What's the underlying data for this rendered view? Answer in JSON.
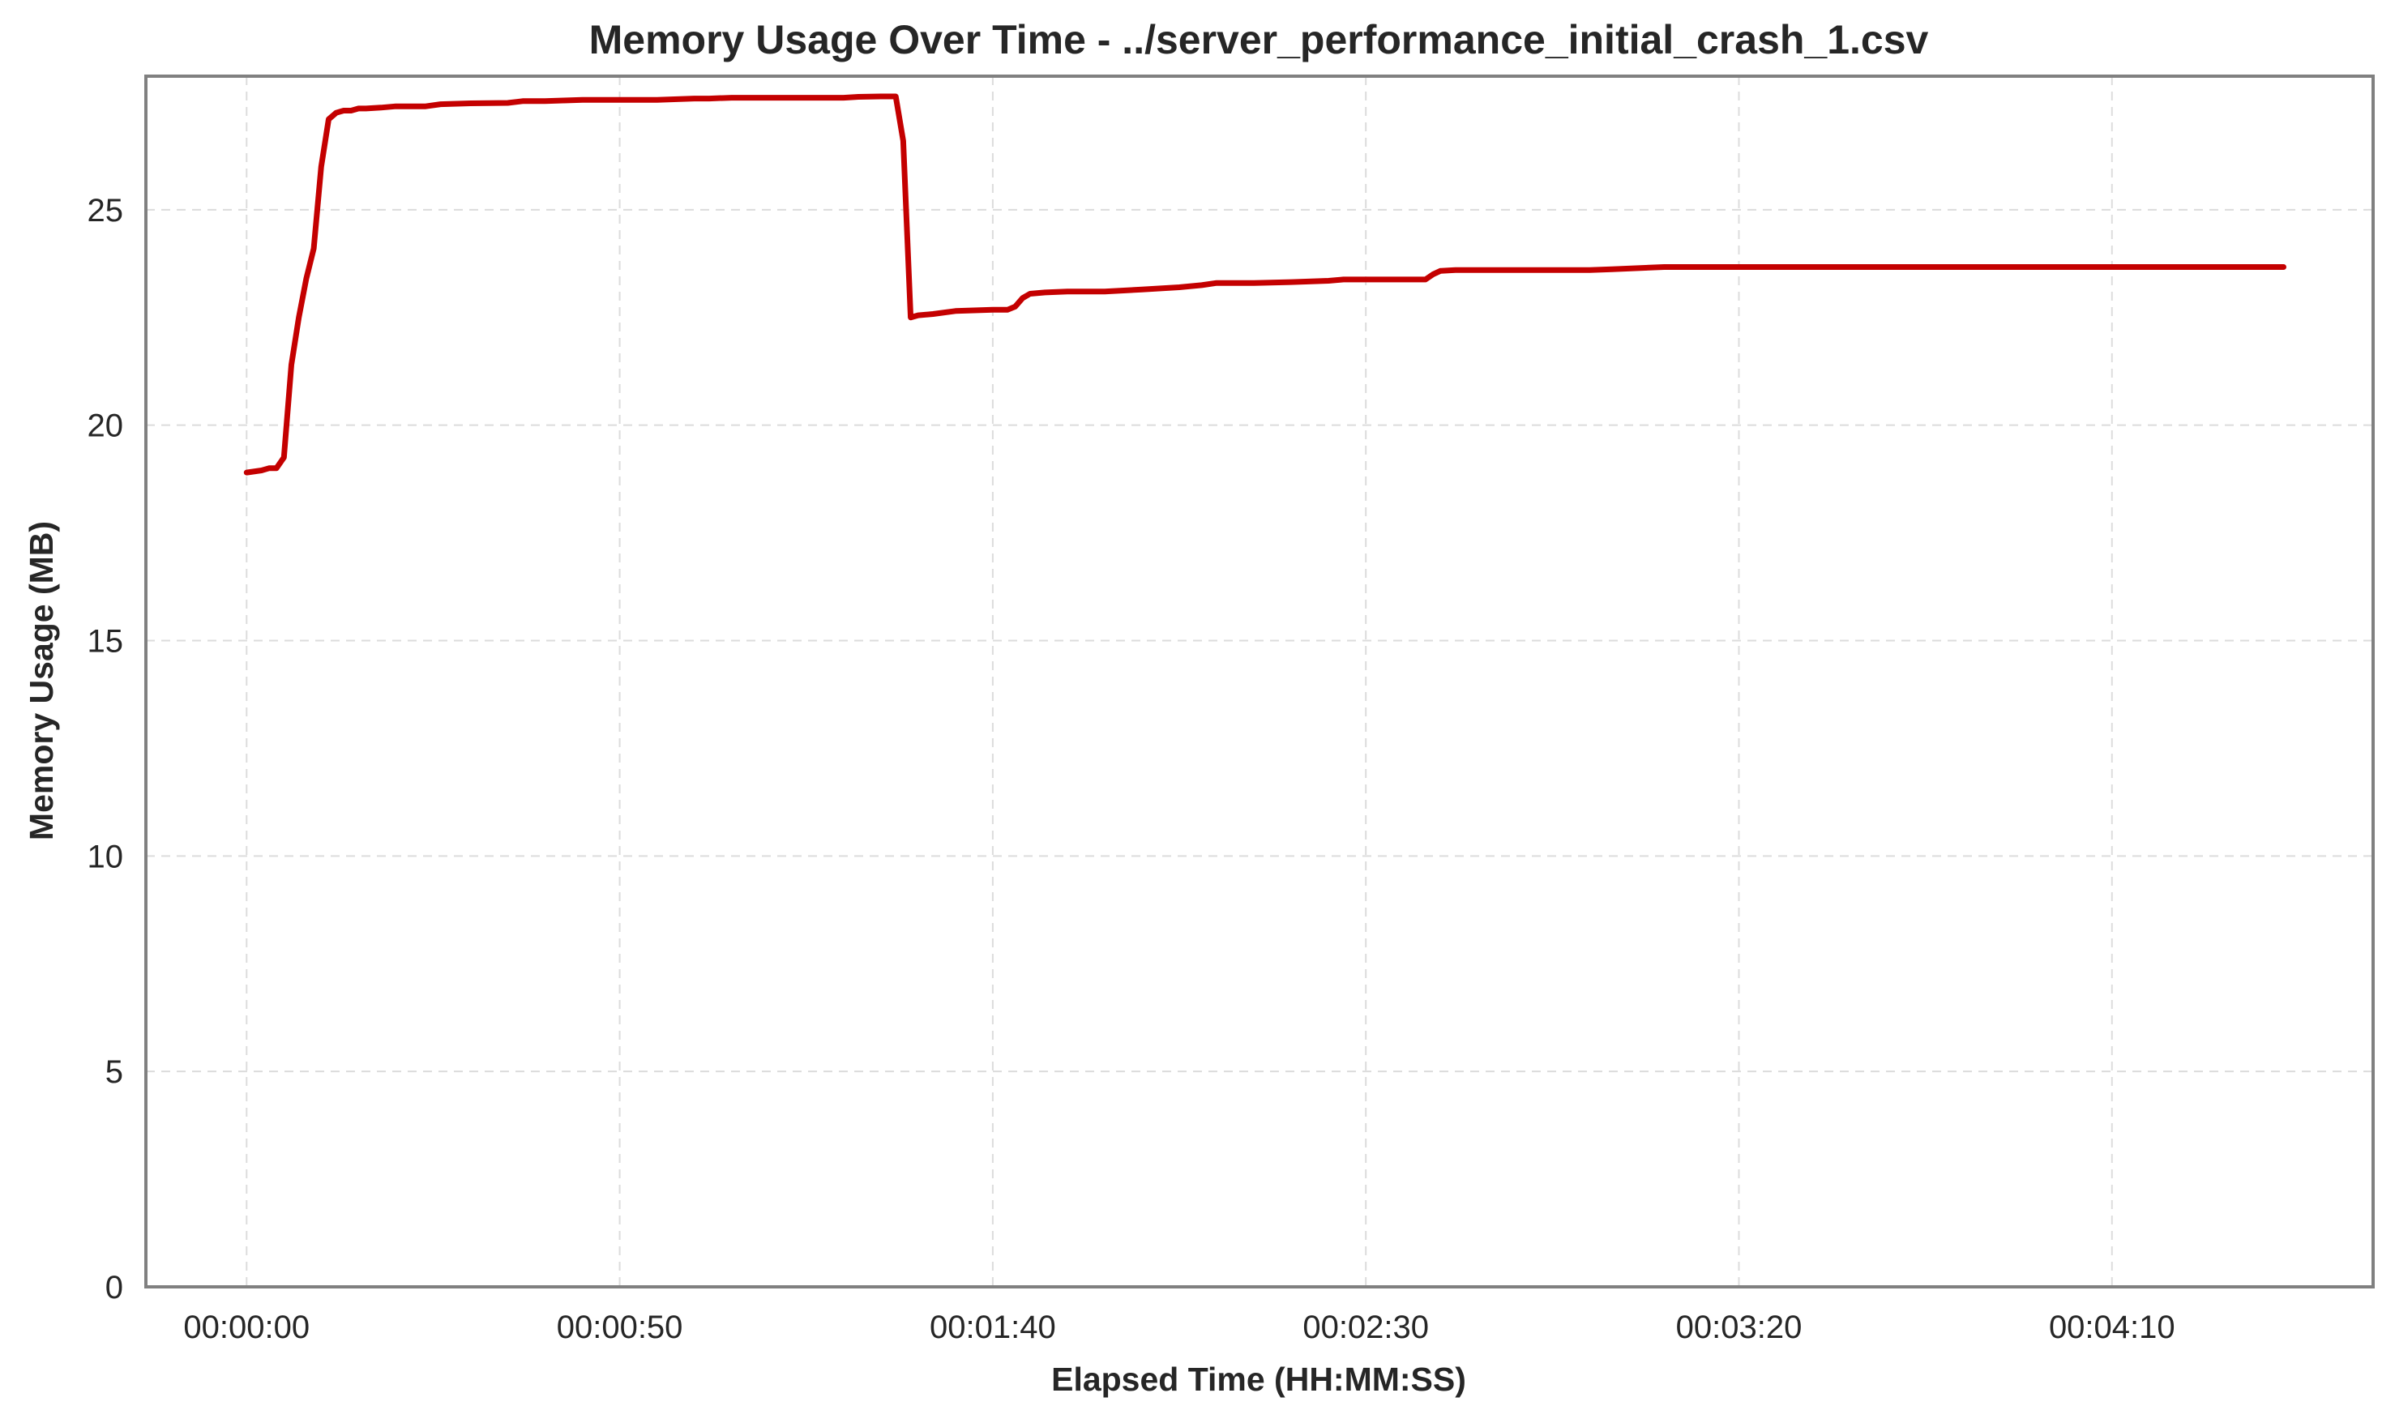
{
  "chart_data": {
    "type": "line",
    "title": "Memory Usage Over Time - ../server_performance_initial_crash_1.csv",
    "xlabel": "Elapsed Time (HH:MM:SS)",
    "ylabel": "Memory Usage (MB)",
    "x_unit": "seconds",
    "xlim": [
      -13.5,
      285
    ],
    "ylim": [
      0,
      28.1
    ],
    "x_ticks": [
      {
        "value": 0,
        "label": "00:00:00"
      },
      {
        "value": 50,
        "label": "00:00:50"
      },
      {
        "value": 100,
        "label": "00:01:40"
      },
      {
        "value": 150,
        "label": "00:02:30"
      },
      {
        "value": 200,
        "label": "00:03:20"
      },
      {
        "value": 250,
        "label": "00:04:10"
      }
    ],
    "y_ticks": [
      {
        "value": 0,
        "label": "0"
      },
      {
        "value": 5,
        "label": "5"
      },
      {
        "value": 10,
        "label": "10"
      },
      {
        "value": 15,
        "label": "15"
      },
      {
        "value": 20,
        "label": "20"
      },
      {
        "value": 25,
        "label": "25"
      }
    ],
    "grid": true,
    "series": [
      {
        "color": "#c40000",
        "x": [
          0,
          2,
          3,
          4,
          5,
          6,
          7,
          8,
          9,
          10,
          11,
          12,
          13,
          14,
          15,
          16,
          18,
          20,
          24,
          26,
          30,
          35,
          37,
          40,
          45,
          47,
          50,
          55,
          60,
          62,
          65,
          70,
          75,
          80,
          82,
          85,
          87,
          88,
          89,
          90,
          92,
          95,
          100,
          102,
          103,
          104,
          105,
          107,
          110,
          115,
          120,
          125,
          128,
          130,
          135,
          140,
          145,
          147,
          150,
          158,
          159,
          160,
          162,
          165,
          170,
          175,
          180,
          183,
          190,
          195,
          200,
          210,
          220,
          230,
          240,
          250,
          260,
          273
        ],
        "y": [
          18.9,
          18.95,
          19.0,
          19.0,
          19.25,
          21.4,
          22.5,
          23.4,
          24.1,
          26.0,
          27.1,
          27.25,
          27.3,
          27.3,
          27.35,
          27.35,
          27.37,
          27.4,
          27.4,
          27.45,
          27.47,
          27.48,
          27.52,
          27.52,
          27.55,
          27.55,
          27.55,
          27.55,
          27.58,
          27.58,
          27.6,
          27.6,
          27.6,
          27.6,
          27.62,
          27.63,
          27.63,
          26.6,
          22.5,
          22.55,
          22.58,
          22.65,
          22.68,
          22.68,
          22.75,
          22.95,
          23.05,
          23.08,
          23.1,
          23.1,
          23.15,
          23.2,
          23.25,
          23.3,
          23.3,
          23.32,
          23.35,
          23.38,
          23.38,
          23.38,
          23.5,
          23.58,
          23.6,
          23.6,
          23.6,
          23.6,
          23.6,
          23.62,
          23.67,
          23.67,
          23.67,
          23.67,
          23.67,
          23.67,
          23.67,
          23.67,
          23.67,
          23.67
        ]
      }
    ]
  }
}
